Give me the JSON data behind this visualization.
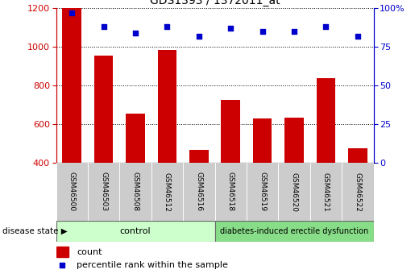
{
  "title": "GDS1393 / 1372011_at",
  "samples": [
    "GSM46500",
    "GSM46503",
    "GSM46508",
    "GSM46512",
    "GSM46516",
    "GSM46518",
    "GSM46519",
    "GSM46520",
    "GSM46521",
    "GSM46522"
  ],
  "counts": [
    1200,
    955,
    655,
    985,
    465,
    725,
    630,
    635,
    840,
    475
  ],
  "percentiles": [
    97,
    88,
    84,
    88,
    82,
    87,
    85,
    85,
    88,
    82
  ],
  "ylim_left": [
    400,
    1200
  ],
  "ylim_right": [
    0,
    100
  ],
  "yticks_left": [
    400,
    600,
    800,
    1000,
    1200
  ],
  "yticks_right": [
    0,
    25,
    50,
    75,
    100
  ],
  "control_label": "control",
  "disease_label": "diabetes-induced erectile dysfunction",
  "bar_color": "#cc0000",
  "scatter_color": "#0000cc",
  "control_bg": "#ccffcc",
  "disease_bg": "#88dd88",
  "tick_label_bg": "#cccccc",
  "legend_count_label": "count",
  "legend_percentile_label": "percentile rank within the sample",
  "disease_state_label": "disease state"
}
